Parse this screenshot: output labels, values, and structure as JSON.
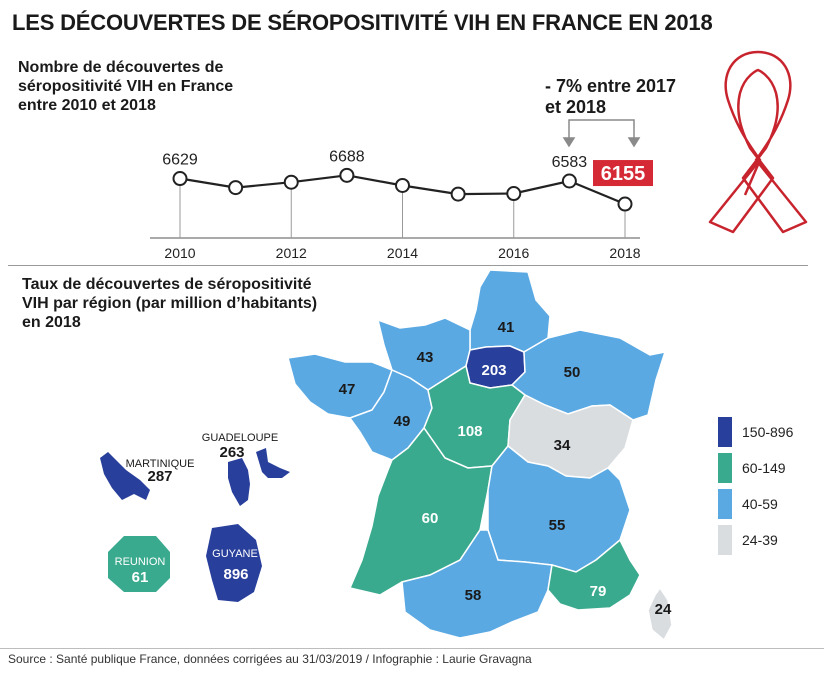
{
  "title": "LES DÉCOUVERTES DE SÉROPOSITIVITÉ VIH EN FRANCE EN 2018",
  "line_subtitle": "Nombre de découvertes de séropositivité VIH en France entre 2010 et 2018",
  "delta_label": "- 7% entre 2017 et 2018",
  "map_subtitle": "Taux de découvertes de séropositivité VIH par région (par million d’habitants) en 2018",
  "source": "Source : Santé publique France, données corrigées au 31/03/2019 / Infographie : Laurie Gravagna",
  "colors": {
    "dark_blue": "#283f9b",
    "green": "#3aaa8e",
    "light_blue": "#5aa9e3",
    "gray": "#d9dde0",
    "highlight_red": "#d52a35",
    "ribbon_red": "#c8242e"
  },
  "chart_data": [
    {
      "type": "line",
      "x": [
        2010,
        2011,
        2012,
        2013,
        2014,
        2015,
        2016,
        2017,
        2018
      ],
      "values": [
        6629,
        6460,
        6560,
        6688,
        6500,
        6340,
        6350,
        6583,
        6155
      ],
      "x_tick_labels": [
        "2010",
        "2012",
        "2014",
        "2016",
        "2018"
      ],
      "data_labels": [
        {
          "x": 2010,
          "label": "6629"
        },
        {
          "x": 2013,
          "label": "6688"
        },
        {
          "x": 2017,
          "label": "6583"
        },
        {
          "x": 2018,
          "label": "6155",
          "highlight": true
        }
      ],
      "ylim": [
        6100,
        6750
      ]
    },
    {
      "type": "choropleth",
      "legend": [
        {
          "label": "150-896",
          "color": "#283f9b"
        },
        {
          "label": "60-149",
          "color": "#3aaa8e"
        },
        {
          "label": "40-59",
          "color": "#5aa9e3"
        },
        {
          "label": "24-39",
          "color": "#d9dde0"
        }
      ],
      "regions": [
        {
          "id": "hauts-de-france",
          "value": "41",
          "color": "#5aa9e3"
        },
        {
          "id": "normandie",
          "value": "43",
          "color": "#5aa9e3"
        },
        {
          "id": "ile-de-france",
          "value": "203",
          "color": "#283f9b"
        },
        {
          "id": "grand-est",
          "value": "50",
          "color": "#5aa9e3"
        },
        {
          "id": "bretagne",
          "value": "47",
          "color": "#5aa9e3"
        },
        {
          "id": "pays-de-la-loire",
          "value": "49",
          "color": "#5aa9e3"
        },
        {
          "id": "centre-val-de-loire",
          "value": "108",
          "color": "#3aaa8e"
        },
        {
          "id": "bourgogne-franche-comte",
          "value": "34",
          "color": "#d9dde0"
        },
        {
          "id": "nouvelle-aquitaine",
          "value": "60",
          "color": "#3aaa8e"
        },
        {
          "id": "auvergne-rhone-alpes",
          "value": "55",
          "color": "#5aa9e3"
        },
        {
          "id": "occitanie",
          "value": "58",
          "color": "#5aa9e3"
        },
        {
          "id": "paca",
          "value": "79",
          "color": "#3aaa8e"
        },
        {
          "id": "corse",
          "value": "24",
          "color": "#d9dde0"
        }
      ],
      "overseas": [
        {
          "name": "MARTINIQUE",
          "value": "287",
          "color": "#283f9b"
        },
        {
          "name": "GUADELOUPE",
          "value": "263",
          "color": "#283f9b"
        },
        {
          "name": "REUNION",
          "value": "61",
          "color": "#3aaa8e"
        },
        {
          "name": "GUYANE",
          "value": "896",
          "color": "#283f9b"
        }
      ]
    }
  ]
}
